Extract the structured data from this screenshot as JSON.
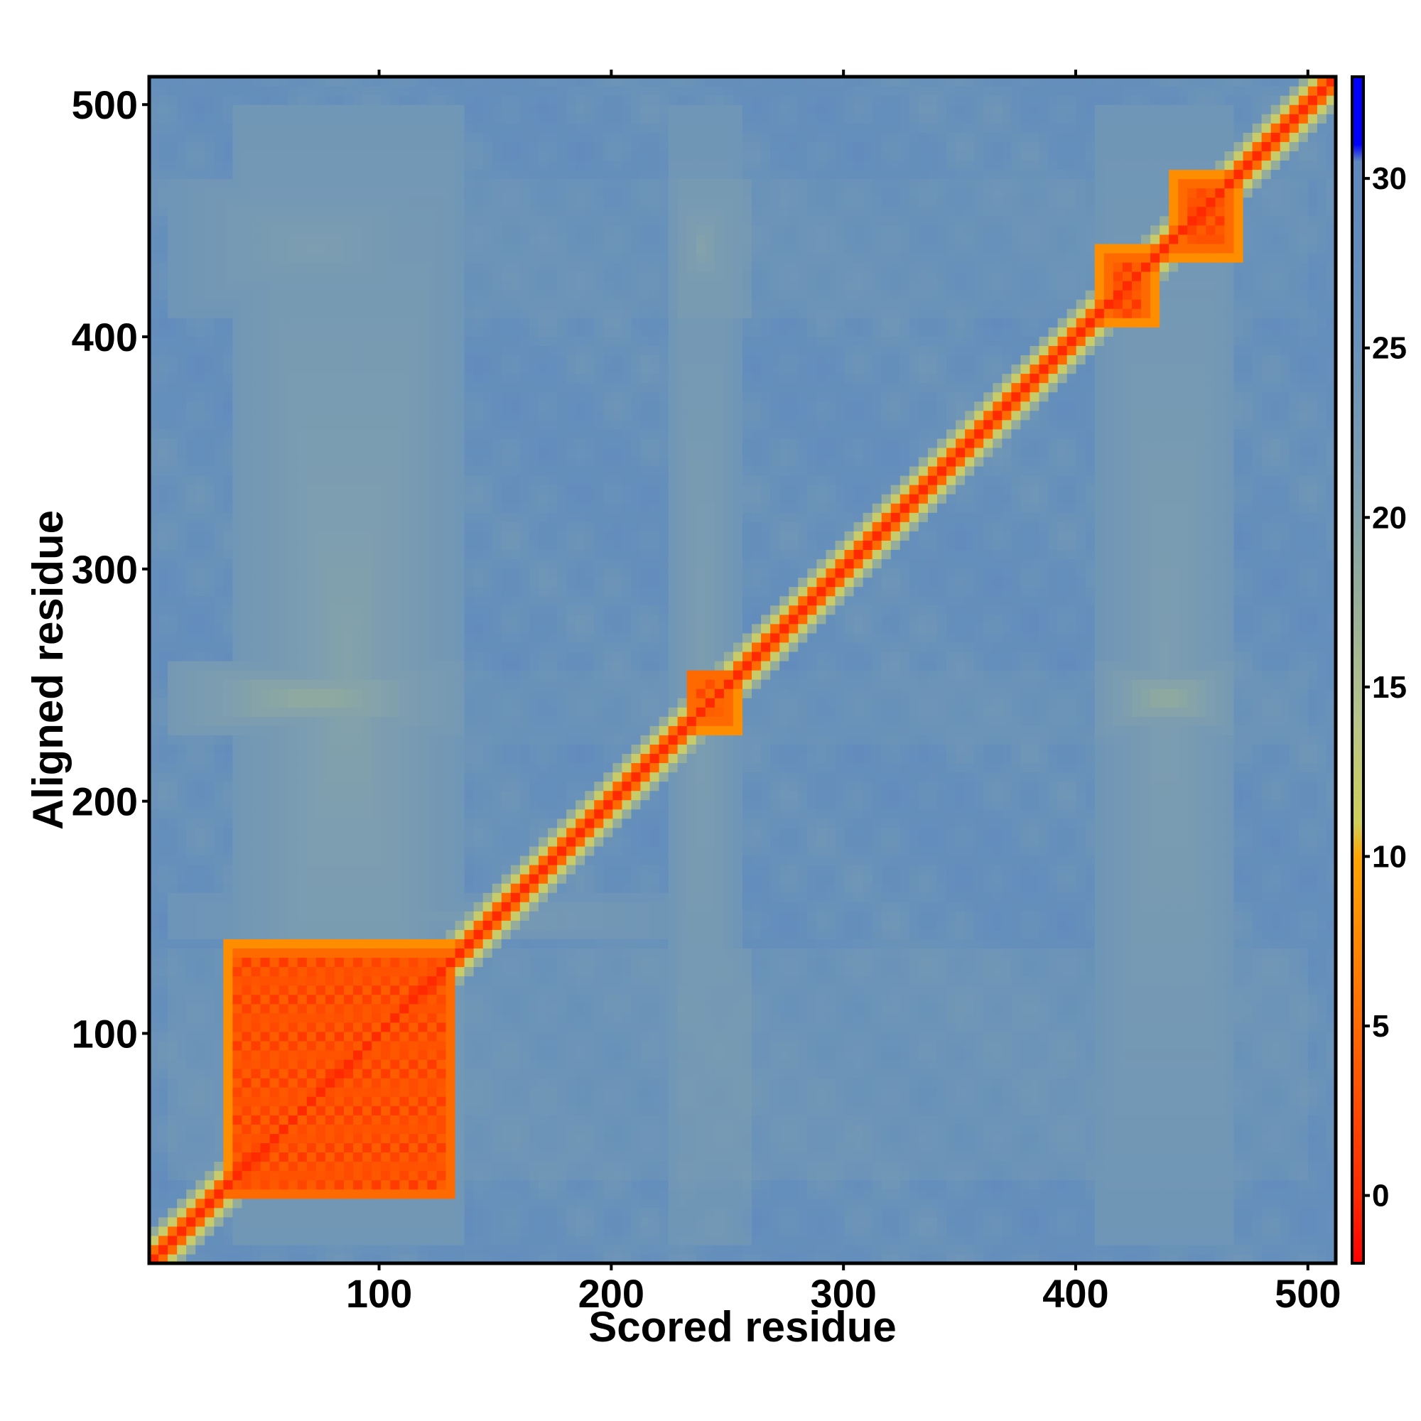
{
  "chart_data": {
    "type": "heatmap",
    "title": "",
    "xlabel": "Scored residue",
    "ylabel": "Aligned residue",
    "xlim": [
      1,
      512
    ],
    "ylim": [
      1,
      512
    ],
    "xticks": [
      100,
      200,
      300,
      400,
      500
    ],
    "yticks": [
      100,
      200,
      300,
      400,
      500
    ],
    "grid": false,
    "colorbar": {
      "range": [
        -2,
        33
      ],
      "ticks": [
        0,
        5,
        10,
        15,
        20,
        25,
        30
      ],
      "stops": [
        {
          "value": -2,
          "color": "#ff0000"
        },
        {
          "value": 0,
          "color": "#ff2a00"
        },
        {
          "value": 5,
          "color": "#ff6a00"
        },
        {
          "value": 10,
          "color": "#ffa500"
        },
        {
          "value": 11,
          "color": "#cfcf5a"
        },
        {
          "value": 14,
          "color": "#b8c48a"
        },
        {
          "value": 18,
          "color": "#93ac9c"
        },
        {
          "value": 21,
          "color": "#7d9eb0"
        },
        {
          "value": 26,
          "color": "#6690bb"
        },
        {
          "value": 30.5,
          "color": "#5f88bd"
        },
        {
          "value": 31,
          "color": "#0000ff"
        },
        {
          "value": 33,
          "color": "#0000ff"
        }
      ]
    },
    "background_value": 26,
    "diagonal": {
      "core_value": 0,
      "band_value": 5,
      "band_halfwidth": 6,
      "fade_halfwidth": 12
    },
    "domains": [
      {
        "x": [
          33,
          134
        ],
        "y": [
          28,
          140
        ],
        "value": 1
      },
      {
        "x": [
          232,
          255
        ],
        "y": [
          230,
          258
        ],
        "value": 2
      },
      {
        "x": [
          410,
          435
        ],
        "y": [
          405,
          440
        ],
        "value": 1
      },
      {
        "x": [
          443,
          472
        ],
        "y": [
          435,
          472
        ],
        "value": 1
      }
    ],
    "weak_contacts": [
      {
        "x": [
          38,
          135
        ],
        "y": [
          10,
          500
        ],
        "value": 20
      },
      {
        "x": [
          10,
          135
        ],
        "y": [
          230,
          260
        ],
        "value": 18
      },
      {
        "x": [
          225,
          255
        ],
        "y": [
          10,
          500
        ],
        "value": 21
      },
      {
        "x": [
          10,
          135
        ],
        "y": [
          410,
          470
        ],
        "value": 21
      },
      {
        "x": [
          410,
          470
        ],
        "y": [
          10,
          500
        ],
        "value": 21
      },
      {
        "x": [
          410,
          470
        ],
        "y": [
          230,
          260
        ],
        "value": 18
      },
      {
        "x": [
          225,
          255
        ],
        "y": [
          410,
          470
        ],
        "value": 20
      },
      {
        "x": [
          10,
          250
        ],
        "y": [
          140,
          160
        ],
        "value": 22
      }
    ]
  }
}
